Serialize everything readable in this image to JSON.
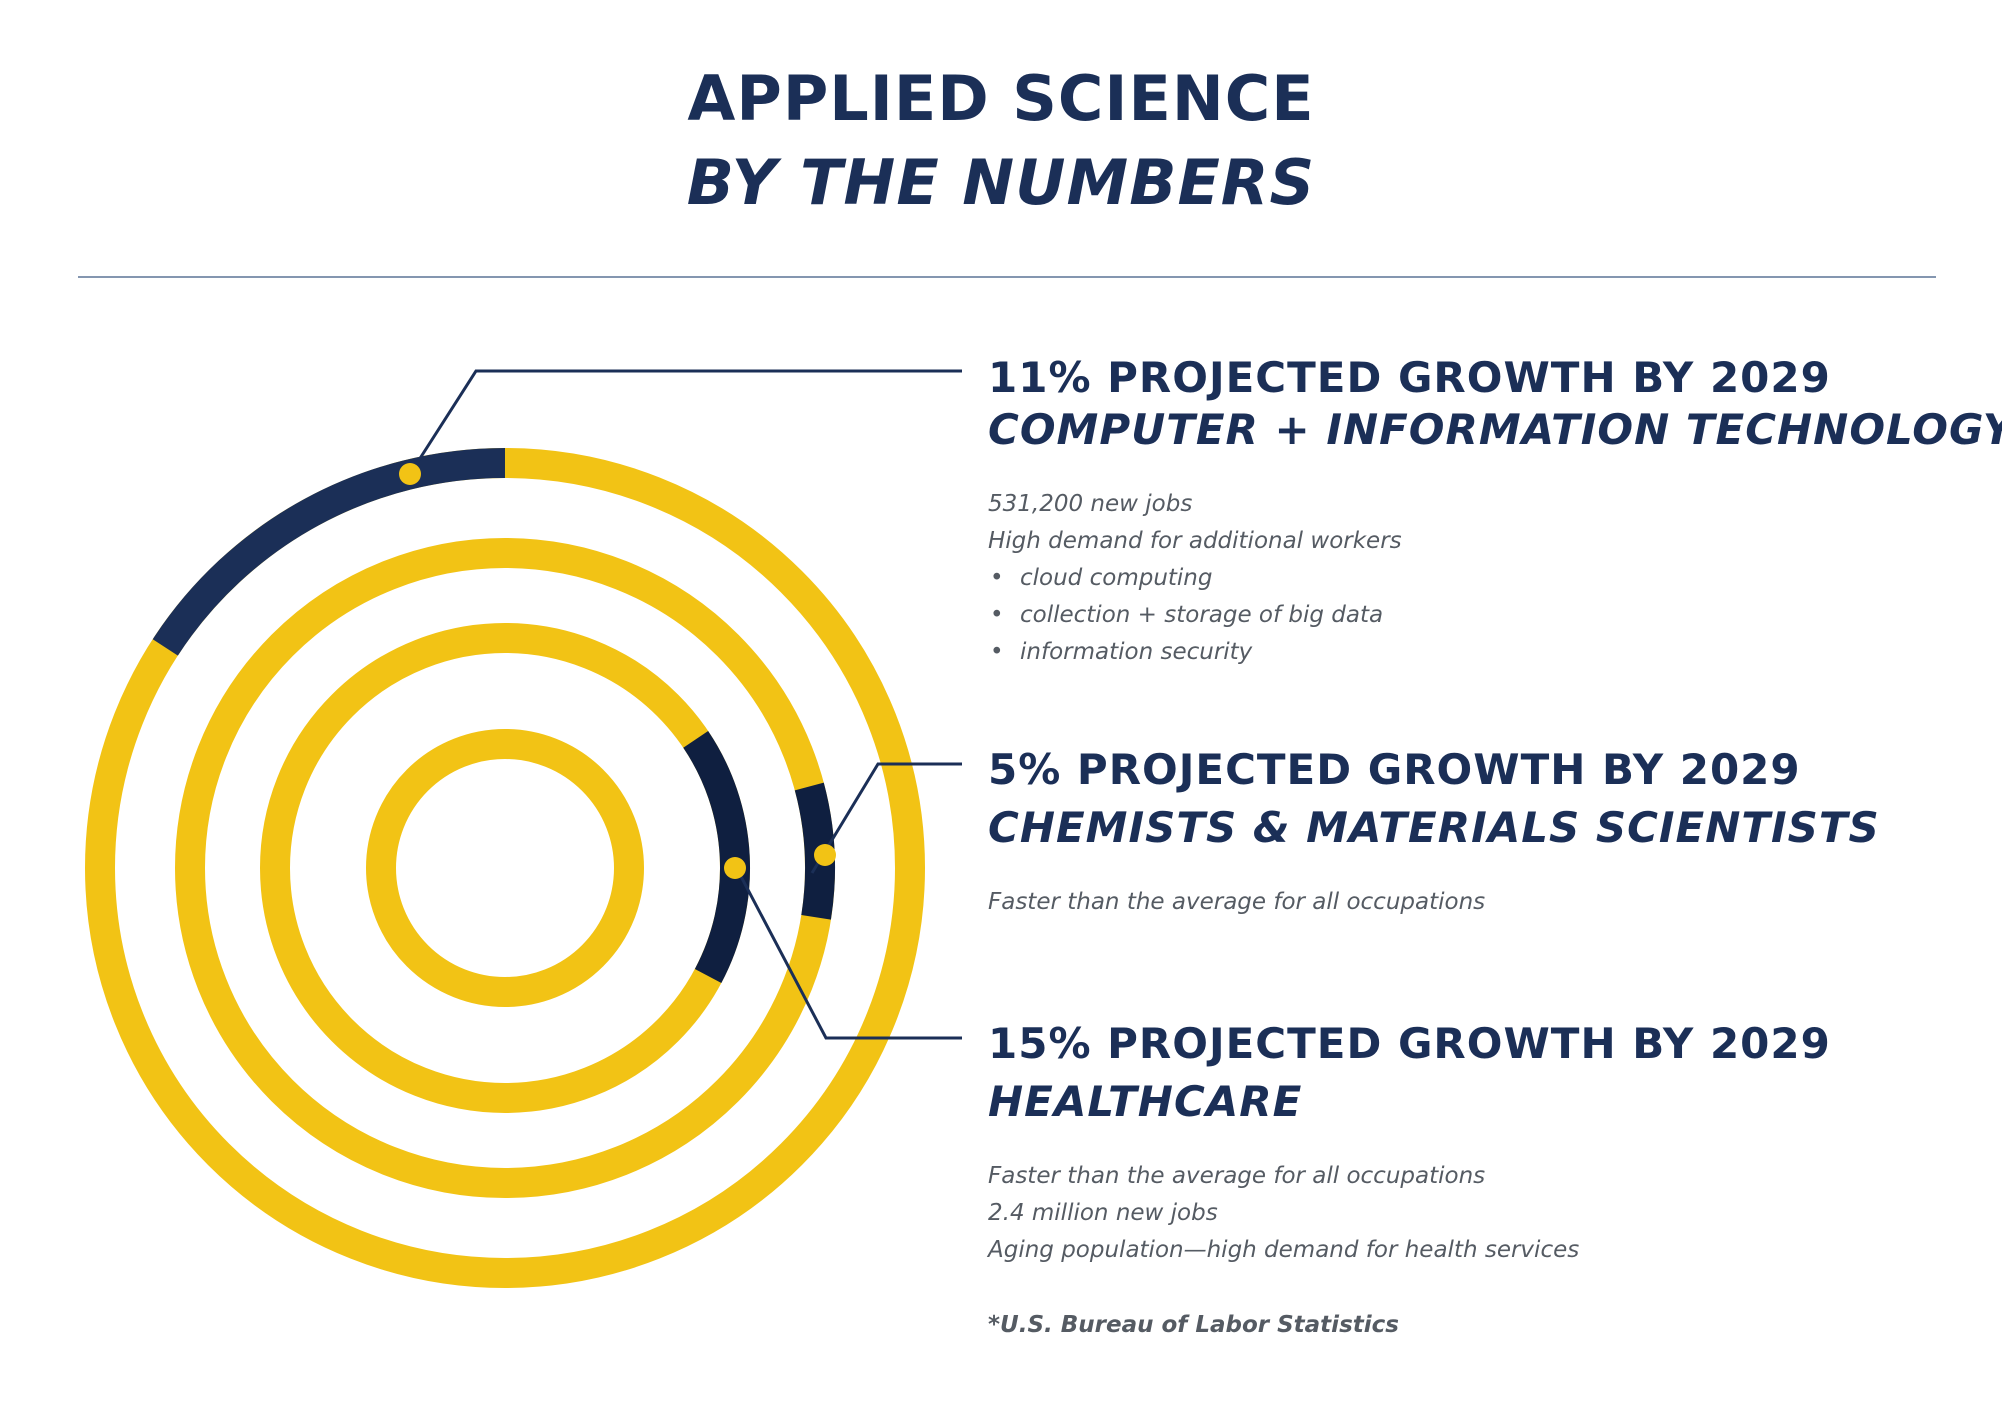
{
  "header": {
    "title_line1": "APPLIED SCIENCE",
    "title_line2": "BY THE NUMBERS"
  },
  "sections": [
    {
      "heading": "11% PROJECTED GROWTH BY 2029",
      "subheading": "COMPUTER + INFORMATION TECHNOLOGY",
      "lines": [
        "531,200 new jobs",
        "High demand for additional workers"
      ],
      "bullets": [
        "cloud computing",
        "collection + storage of big data",
        "information security"
      ]
    },
    {
      "heading": "5% PROJECTED GROWTH BY 2029",
      "subheading": "CHEMISTS & MATERIALS SCIENTISTS",
      "lines": [
        "Faster than the average for all occupations"
      ]
    },
    {
      "heading": "15% PROJECTED GROWTH BY 2029",
      "subheading": "HEALTHCARE",
      "lines": [
        "Faster than the average for all occupations",
        "2.4 million new jobs",
        "Aging population—high demand for health services"
      ]
    }
  ],
  "footnote": "*U.S. Bureau of Labor Statistics",
  "colors": {
    "ring": "#f2c315",
    "highlight": "#1b2f57",
    "highlight_dark": "#0f1f40",
    "marker": "#f2c315",
    "text_dark": "#1b2f57",
    "text_muted": "#555b63"
  },
  "chart_data": {
    "type": "radial",
    "title": "APPLIED SCIENCE BY THE NUMBERS",
    "series": [
      {
        "name": "Computer + Information Technology",
        "growth_percent": 11,
        "ring": "outer"
      },
      {
        "name": "Chemists & Materials Scientists",
        "growth_percent": 5,
        "ring": "second"
      },
      {
        "name": "Healthcare",
        "growth_percent": 15,
        "ring": "third"
      }
    ],
    "rings": 4,
    "year": 2029
  }
}
